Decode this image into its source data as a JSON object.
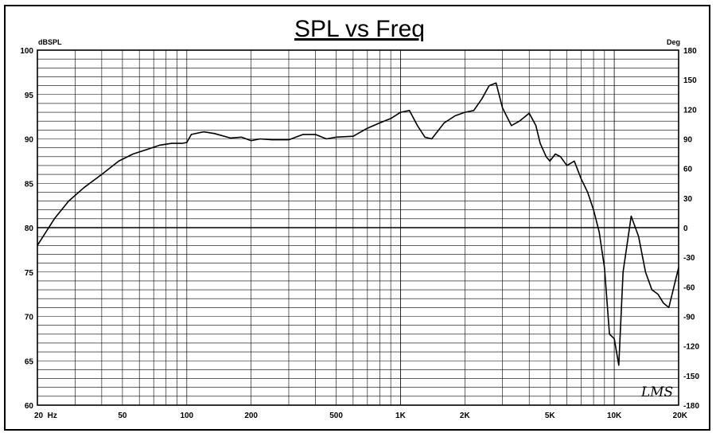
{
  "chart_data": {
    "type": "line",
    "title": "SPL vs Freq",
    "left_unit": "dBSPL",
    "right_unit": "Deg",
    "x_scale": "log",
    "xlim": [
      20,
      20000
    ],
    "ylim": [
      60,
      100
    ],
    "y2lim": [
      -180,
      180
    ],
    "x_tick_labels": [
      {
        "value": 20,
        "label": "20  Hz"
      },
      {
        "value": 50,
        "label": "50"
      },
      {
        "value": 100,
        "label": "100"
      },
      {
        "value": 200,
        "label": "200"
      },
      {
        "value": 500,
        "label": "500"
      },
      {
        "value": 1000,
        "label": "1K"
      },
      {
        "value": 2000,
        "label": "2K"
      },
      {
        "value": 5000,
        "label": "5K"
      },
      {
        "value": 10000,
        "label": "10K"
      },
      {
        "value": 20000,
        "label": "20K"
      }
    ],
    "y_tick_labels": [
      "100",
      "95",
      "90",
      "85",
      "80",
      "75",
      "70",
      "65",
      "60"
    ],
    "y_tick_values": [
      100,
      95,
      90,
      85,
      80,
      75,
      70,
      65,
      60
    ],
    "y2_tick_labels": [
      "180",
      "150",
      "120",
      "90",
      "60",
      "30",
      "0",
      "-30",
      "-60",
      "-90",
      "-120",
      "-150",
      "-180"
    ],
    "y2_tick_values": [
      180,
      150,
      120,
      90,
      60,
      30,
      0,
      -30,
      -60,
      -90,
      -120,
      -150,
      -180
    ],
    "grid": true,
    "reference_line_y": 80,
    "logo_text": "LMS",
    "series": [
      {
        "x": [
          20,
          24,
          28,
          33,
          40,
          48,
          56,
          65,
          75,
          85,
          95,
          100,
          105,
          120,
          135,
          160,
          180,
          200,
          220,
          250,
          300,
          350,
          400,
          450,
          500,
          600,
          700,
          800,
          900,
          1000,
          1100,
          1200,
          1300,
          1400,
          1600,
          1800,
          2000,
          2200,
          2400,
          2600,
          2800,
          3000,
          3300,
          3600,
          4000,
          4300,
          4500,
          4800,
          5000,
          5300,
          5600,
          6000,
          6500,
          7000,
          7500,
          8000,
          8500,
          9000,
          9500,
          10000,
          10500,
          11000,
          12000,
          13000,
          14000,
          15000,
          16000,
          17000,
          18000,
          20000
        ],
        "y": [
          78,
          81,
          83,
          84.5,
          86,
          87.5,
          88.3,
          88.8,
          89.3,
          89.5,
          89.5,
          89.6,
          90.5,
          90.8,
          90.6,
          90.1,
          90.2,
          89.8,
          90.0,
          89.9,
          89.9,
          90.5,
          90.5,
          90.0,
          90.2,
          90.3,
          91.2,
          91.8,
          92.3,
          93.0,
          93.2,
          91.5,
          90.2,
          90.0,
          91.8,
          92.6,
          93.0,
          93.2,
          94.5,
          96.0,
          96.3,
          93.5,
          91.5,
          92.0,
          92.9,
          91.5,
          89.5,
          88.0,
          87.5,
          88.3,
          88.0,
          87.0,
          87.5,
          85.5,
          84.0,
          82.0,
          79.5,
          75.5,
          68,
          67.5,
          64.5,
          75,
          81.3,
          79,
          75,
          73,
          72.5,
          71.5,
          71,
          75.5
        ]
      }
    ]
  }
}
